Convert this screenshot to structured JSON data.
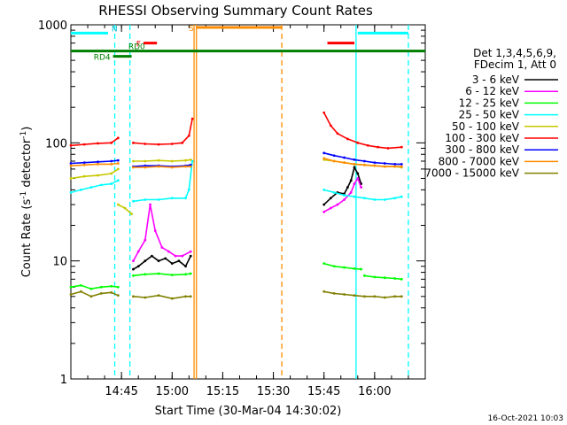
{
  "chart_data": {
    "type": "line",
    "title": "RHESSI Observing Summary Count Rates",
    "xlabel": "Start Time (30-Mar-04 14:30:02)",
    "ylabel_main": "Count Rate (s",
    "ylabel_sup1": "-1",
    "ylabel_mid": " detector",
    "ylabel_sup2": "-1",
    "ylabel_end": ")",
    "yscale": "log",
    "ylim": [
      1,
      1000
    ],
    "xlim_min": [
      0,
      105
    ],
    "x_unit": "minutes after 14:30:02",
    "x_ticks": [
      {
        "label": "14:45",
        "value": 15
      },
      {
        "label": "15:00",
        "value": 30
      },
      {
        "label": "15:15",
        "value": 45
      },
      {
        "label": "15:30",
        "value": 60
      },
      {
        "label": "15:45",
        "value": 75
      },
      {
        "label": "16:00",
        "value": 90
      }
    ],
    "y_ticks": [
      {
        "label": "1",
        "value": 1
      },
      {
        "label": "10",
        "value": 10
      },
      {
        "label": "100",
        "value": 100
      },
      {
        "label": "1000",
        "value": 1000
      }
    ],
    "legend_header": [
      "Det 1,3,4,5,6,9,",
      "FDecim 1, Att 0"
    ],
    "series": [
      {
        "name": "3 - 6 keV",
        "color": "#000000",
        "segments": [
          {
            "x": [
              18.5,
              20,
              22,
              24,
              26,
              28,
              30,
              32,
              34,
              35.5
            ],
            "y": [
              8.5,
              9,
              10,
              11,
              10,
              10.5,
              9.5,
              10,
              9,
              11
            ]
          },
          {
            "x": [
              75,
              77,
              79,
              81,
              82,
              83,
              84,
              85,
              86
            ],
            "y": [
              30,
              34,
              38,
              37,
              42,
              48,
              62,
              55,
              45
            ]
          }
        ]
      },
      {
        "name": "6 - 12 keV",
        "color": "#ff00ff",
        "segments": [
          {
            "x": [
              18.5,
              20,
              22,
              23.5,
              25,
              27,
              29,
              31,
              33,
              35.5
            ],
            "y": [
              10,
              12,
              15,
              30,
              18,
              13,
              12,
              11,
              11,
              12
            ]
          },
          {
            "x": [
              75,
              77,
              79,
              81,
              83,
              84,
              85,
              86
            ],
            "y": [
              26,
              28,
              30,
              33,
              38,
              45,
              50,
              42
            ]
          }
        ]
      },
      {
        "name": "12 - 25 keV",
        "color": "#00ff00",
        "segments": [
          {
            "x": [
              0,
              3,
              6,
              9,
              12,
              14
            ],
            "y": [
              6,
              6.2,
              5.8,
              6,
              6.1,
              6
            ]
          },
          {
            "x": [
              18.5,
              22,
              26,
              30,
              34,
              35.5
            ],
            "y": [
              7.5,
              7.7,
              7.8,
              7.6,
              7.7,
              7.8
            ]
          },
          {
            "x": [
              75,
              78,
              81,
              84,
              86
            ],
            "y": [
              9.5,
              9,
              8.8,
              8.6,
              8.5
            ]
          },
          {
            "x": [
              87,
              90,
              93,
              96,
              98
            ],
            "y": [
              7.5,
              7.3,
              7.2,
              7.1,
              7
            ]
          }
        ]
      },
      {
        "name": "25 - 50 keV",
        "color": "#00ffff",
        "segments": [
          {
            "x": [
              0,
              3,
              6,
              9,
              12,
              14
            ],
            "y": [
              38,
              40,
              42,
              44,
              45,
              48
            ]
          },
          {
            "x": [
              18.5,
              22,
              26,
              30,
              34,
              35,
              36
            ],
            "y": [
              32,
              33,
              33,
              34,
              34,
              40,
              70
            ]
          },
          {
            "x": [
              75,
              78,
              81,
              84,
              87,
              90,
              93,
              96,
              98
            ],
            "y": [
              40,
              38,
              36,
              35,
              34,
              33,
              33,
              34,
              35
            ]
          }
        ]
      },
      {
        "name": "50 - 100 keV",
        "color": "#c8c800",
        "segments": [
          {
            "x": [
              0,
              4,
              8,
              12,
              14
            ],
            "y": [
              50,
              52,
              53,
              55,
              60
            ]
          },
          {
            "x": [
              14,
              16,
              18
            ],
            "y": [
              30,
              28,
              25
            ]
          },
          {
            "x": [
              18.5,
              22,
              26,
              30,
              34,
              35.5
            ],
            "y": [
              70,
              70,
              71,
              70,
              71,
              72
            ]
          },
          {
            "x": [
              75,
              78,
              81,
              84,
              87,
              90,
              93,
              96,
              98
            ],
            "y": [
              72,
              70,
              68,
              66,
              65,
              64,
              63,
              63,
              62
            ]
          }
        ]
      },
      {
        "name": "100 - 300 keV",
        "color": "#ff0000",
        "segments": [
          {
            "x": [
              0,
              4,
              8,
              12,
              14
            ],
            "y": [
              95,
              97,
              99,
              100,
              110
            ]
          },
          {
            "x": [
              18.5,
              22,
              26,
              30,
              33,
              35,
              36
            ],
            "y": [
              100,
              98,
              97,
              98,
              100,
              115,
              160
            ]
          },
          {
            "x": [
              75,
              77,
              79,
              82,
              85,
              88,
              91,
              94,
              98
            ],
            "y": [
              180,
              140,
              120,
              108,
              100,
              95,
              92,
              90,
              92
            ]
          }
        ]
      },
      {
        "name": "300 - 800 keV",
        "color": "#0000ff",
        "segments": [
          {
            "x": [
              0,
              4,
              8,
              12,
              14
            ],
            "y": [
              67,
              68,
              69,
              70,
              71
            ]
          },
          {
            "x": [
              18.5,
              22,
              26,
              30,
              34,
              35.5
            ],
            "y": [
              63,
              64,
              64,
              63,
              64,
              65
            ]
          },
          {
            "x": [
              75,
              78,
              81,
              84,
              87,
              90,
              93,
              96,
              98
            ],
            "y": [
              82,
              78,
              75,
              72,
              70,
              68,
              67,
              66,
              66
            ]
          }
        ]
      },
      {
        "name": "800 - 7000 keV",
        "color": "#ff8c00",
        "segments": [
          {
            "x": [
              0,
              4,
              8,
              12,
              14
            ],
            "y": [
              64,
              65,
              66,
              66,
              67
            ]
          },
          {
            "x": [
              18.5,
              22,
              26,
              30,
              34,
              35.5
            ],
            "y": [
              62,
              62,
              63,
              62,
              63,
              63
            ]
          },
          {
            "x": [
              75,
              78,
              81,
              84,
              87,
              90,
              93,
              96,
              98
            ],
            "y": [
              74,
              70,
              68,
              66,
              65,
              64,
              63,
              63,
              63
            ]
          }
        ]
      },
      {
        "name": "7000 - 15000 keV",
        "color": "#808000",
        "segments": [
          {
            "x": [
              0,
              3,
              6,
              9,
              12,
              14
            ],
            "y": [
              5.2,
              5.5,
              5.0,
              5.3,
              5.4,
              5.1
            ]
          },
          {
            "x": [
              18.5,
              22,
              26,
              30,
              34,
              35.5
            ],
            "y": [
              5,
              4.9,
              5.1,
              4.8,
              5,
              5
            ]
          },
          {
            "x": [
              75,
              78,
              81,
              84,
              87,
              90,
              93,
              96,
              98
            ],
            "y": [
              5.5,
              5.3,
              5.2,
              5.1,
              5.0,
              5.0,
              4.9,
              5.0,
              5.0
            ]
          }
        ]
      }
    ],
    "vertical_lines": [
      {
        "x": 13,
        "color": "#00ffff",
        "style": "dashed"
      },
      {
        "x": 17.5,
        "color": "#00ffff",
        "style": "dashed"
      },
      {
        "x": 36.5,
        "color": "#ff8c00",
        "style": "solid"
      },
      {
        "x": 37.2,
        "color": "#ff8c00",
        "style": "solid"
      },
      {
        "x": 62.5,
        "color": "#ff8c00",
        "style": "dashed"
      },
      {
        "x": 84.5,
        "color": "#00ffff",
        "style": "solid"
      },
      {
        "x": 100,
        "color": "#00ffff",
        "style": "dashed"
      }
    ],
    "flag_bars": [
      {
        "label": "N",
        "x0": 0,
        "x1": 11,
        "y": 850,
        "color": "#00ffff",
        "label_side": "right"
      },
      {
        "label": "",
        "x0": 85,
        "x1": 100,
        "y": 850,
        "color": "#00ffff",
        "label_side": "none"
      },
      {
        "label": "S",
        "x0": 37.2,
        "x1": 62.5,
        "y": 950,
        "color": "#ff8c00",
        "label_side": "left"
      },
      {
        "label": "F",
        "x0": 21.5,
        "x1": 25.5,
        "y": 700,
        "color": "#ff0000",
        "label_side": "left"
      },
      {
        "label": "",
        "x0": 76,
        "x1": 84,
        "y": 700,
        "color": "#ff0000",
        "label_side": "none"
      },
      {
        "label": "RD0",
        "x0": 0,
        "x1": 105,
        "y": 600,
        "color": "#008000",
        "label_side": "above-left"
      },
      {
        "label": "RD4",
        "x0": 12.5,
        "x1": 18,
        "y": 540,
        "color": "#008000",
        "label_side": "left"
      }
    ],
    "timestamp": "16-Oct-2021 10:03"
  }
}
